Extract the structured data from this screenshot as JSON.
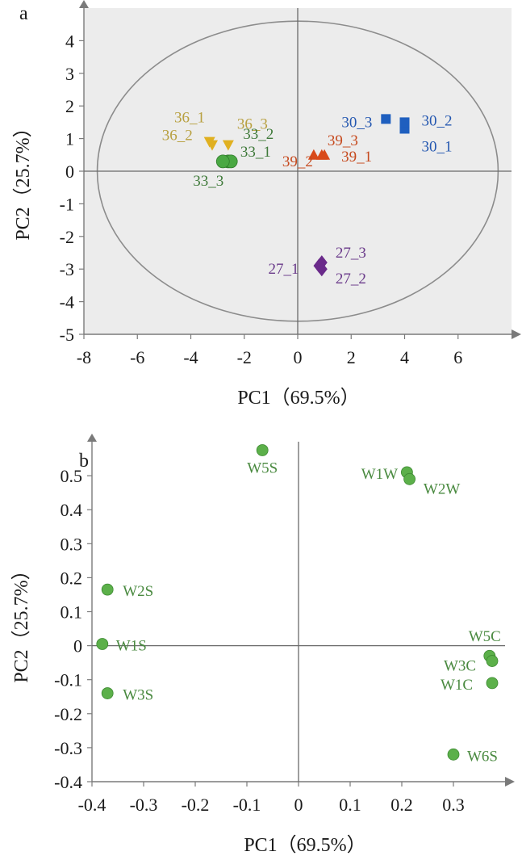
{
  "chart_data": [
    {
      "type": "scatter",
      "panel_label": "a",
      "xlabel": "PC1（69.5%）",
      "ylabel": "PC2（25.7%）",
      "xlim": [
        -8,
        8
      ],
      "ylim": [
        -5,
        5
      ],
      "xticks": [
        -8,
        -6,
        -4,
        -2,
        0,
        2,
        4,
        6
      ],
      "yticks": [
        -5,
        -4,
        -3,
        -2,
        -1,
        0,
        1,
        2,
        3,
        4
      ],
      "ellipse": {
        "cx": 0,
        "cy": 0,
        "rx": 7.5,
        "ry": 4.6
      },
      "grid": false,
      "background": "#ececec",
      "groups": [
        {
          "color": "#e0b020",
          "label_color": "#b8a040",
          "marker": "triangle-down",
          "points": [
            {
              "label": "36_1",
              "x": -3.2,
              "y": 0.8
            },
            {
              "label": "36_2",
              "x": -3.3,
              "y": 0.9
            },
            {
              "label": "36_3",
              "x": -2.6,
              "y": 0.8
            }
          ]
        },
        {
          "color": "#4aa843",
          "label_color": "#3f7a3a",
          "marker": "circle",
          "points": [
            {
              "label": "33_1",
              "x": -2.6,
              "y": 0.3
            },
            {
              "label": "33_2",
              "x": -2.5,
              "y": 0.3
            },
            {
              "label": "33_3",
              "x": -2.8,
              "y": 0.3
            }
          ]
        },
        {
          "color": "#d84a1a",
          "label_color": "#c64a1e",
          "marker": "triangle-up",
          "points": [
            {
              "label": "39_1",
              "x": 1.0,
              "y": 0.5
            },
            {
              "label": "39_2",
              "x": 0.6,
              "y": 0.5
            },
            {
              "label": "39_3",
              "x": 0.9,
              "y": 0.5
            }
          ]
        },
        {
          "color": "#1f5fbf",
          "label_color": "#2457b0",
          "marker": "square",
          "points": [
            {
              "label": "30_1",
              "x": 4.0,
              "y": 1.3
            },
            {
              "label": "30_2",
              "x": 4.0,
              "y": 1.5
            },
            {
              "label": "30_3",
              "x": 3.3,
              "y": 1.6
            }
          ]
        },
        {
          "color": "#6a2a8a",
          "label_color": "#6a3a8a",
          "marker": "diamond",
          "points": [
            {
              "label": "27_1",
              "x": 0.8,
              "y": -2.9
            },
            {
              "label": "27_2",
              "x": 0.9,
              "y": -3.0
            },
            {
              "label": "27_3",
              "x": 0.9,
              "y": -2.8
            }
          ]
        }
      ]
    },
    {
      "type": "scatter",
      "panel_label": "b",
      "xlabel": "PC1（69.5%）",
      "ylabel": "PC2（25.7%）",
      "xlim": [
        -0.4,
        0.4
      ],
      "ylim": [
        -0.4,
        0.6
      ],
      "xticks": [
        -0.4,
        -0.3,
        -0.2,
        -0.1,
        0,
        0.1,
        0.2,
        0.3
      ],
      "xtick_labels": [
        "-0.4",
        "-0.3",
        "-0.2",
        "-0.1",
        "0",
        "0.1",
        "0.2",
        "0.3"
      ],
      "yticks": [
        -0.4,
        -0.3,
        -0.2,
        -0.1,
        0,
        0.1,
        0.2,
        0.3,
        0.4,
        0.5
      ],
      "ytick_labels": [
        "-0.4",
        "-0.3",
        "-0.2",
        "-0.1",
        "0",
        "0.1",
        "0.2",
        "0.3",
        "0.4",
        "0.5"
      ],
      "grid": false,
      "point_color": "#5cb04a",
      "label_color": "#4a8a40",
      "points": [
        {
          "label": "W5S",
          "x": -0.07,
          "y": 0.575
        },
        {
          "label": "W1W",
          "x": 0.21,
          "y": 0.51
        },
        {
          "label": "W2W",
          "x": 0.215,
          "y": 0.49
        },
        {
          "label": "W2S",
          "x": -0.37,
          "y": 0.165
        },
        {
          "label": "W1S",
          "x": -0.38,
          "y": 0.005
        },
        {
          "label": "W3S",
          "x": -0.37,
          "y": -0.14
        },
        {
          "label": "W5C",
          "x": 0.37,
          "y": -0.03
        },
        {
          "label": "W3C",
          "x": 0.375,
          "y": -0.045
        },
        {
          "label": "W1C",
          "x": 0.375,
          "y": -0.11
        },
        {
          "label": "W6S",
          "x": 0.3,
          "y": -0.32
        }
      ]
    }
  ]
}
